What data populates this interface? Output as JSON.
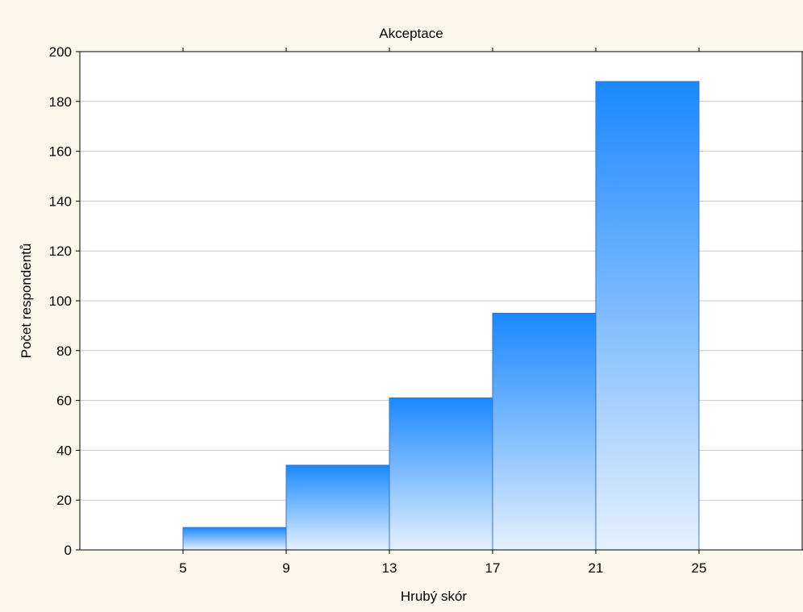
{
  "chart_data": {
    "type": "bar",
    "title": "Akceptace",
    "xlabel": "Hrubý skór",
    "ylabel": "Počet respondentů",
    "bins": [
      {
        "from": 5,
        "to": 9,
        "value": 9
      },
      {
        "from": 9,
        "to": 13,
        "value": 34
      },
      {
        "from": 13,
        "to": 17,
        "value": 61
      },
      {
        "from": 17,
        "to": 21,
        "value": 95
      },
      {
        "from": 21,
        "to": 25,
        "value": 188
      }
    ],
    "xticks": [
      5,
      9,
      13,
      17,
      21,
      25
    ],
    "yticks": [
      0,
      20,
      40,
      60,
      80,
      100,
      120,
      140,
      160,
      180,
      200
    ],
    "xlim": [
      1,
      29
    ],
    "ylim": [
      0,
      200
    ],
    "grid": true,
    "bar_color_top": "#1a88ff",
    "bar_color_bottom": "#e6f1fd",
    "bar_stroke": "#3a74c8"
  }
}
